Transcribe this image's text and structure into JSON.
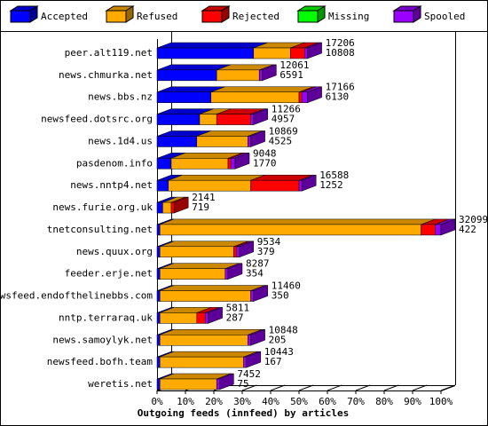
{
  "chart_data": {
    "type": "bar",
    "orientation": "horizontal",
    "stacked": true,
    "x_label": "Outgoing feeds (innfeed) by articles",
    "categories": [
      "peer.alt119.net",
      "news.chmurka.net",
      "news.bbs.nz",
      "newsfeed.dotsrc.org",
      "news.1d4.us",
      "pasdenom.info",
      "news.nntp4.net",
      "news.furie.org.uk",
      "tnetconsulting.net",
      "news.quux.org",
      "feeder.erje.net",
      "newsfeed.endofthelinebbs.com",
      "nntp.terraraq.uk",
      "news.samoylyk.net",
      "newsfeed.bofh.team",
      "weretis.net"
    ],
    "series": [
      {
        "name": "Accepted",
        "color": "#0000ff",
        "values": [
          34,
          21,
          19,
          15,
          14,
          5,
          4,
          2,
          1,
          1,
          1,
          1,
          1,
          1,
          1,
          1
        ]
      },
      {
        "name": "Refused",
        "color": "#ffaa00",
        "values": [
          13,
          15,
          31,
          6,
          18,
          20,
          29,
          3,
          92,
          26,
          23,
          32,
          13,
          31,
          29.5,
          20
        ]
      },
      {
        "name": "Rejected",
        "color": "#ff0000",
        "values": [
          5,
          0,
          1,
          12,
          0,
          1,
          17,
          1,
          5,
          1,
          0,
          0,
          3,
          0,
          0,
          0
        ]
      },
      {
        "name": "Missing",
        "color": "#00ff00",
        "values": [
          0,
          0,
          0,
          0,
          0,
          0,
          0,
          0,
          0,
          0,
          0,
          0,
          0,
          0,
          0,
          0
        ]
      },
      {
        "name": "Spooled",
        "color": "#9900ff",
        "values": [
          1,
          1,
          2,
          1,
          1,
          1.5,
          1,
          0,
          2,
          1,
          1,
          1,
          1,
          1,
          1,
          1
        ]
      }
    ],
    "offered_labels": [
      17206,
      12061,
      17166,
      11266,
      10869,
      9048,
      16588,
      2141,
      32099,
      9534,
      8287,
      11460,
      5811,
      10848,
      10443,
      7452
    ],
    "accepted_labels": [
      10808,
      6591,
      6130,
      4957,
      4525,
      1770,
      1252,
      719,
      422,
      379,
      354,
      350,
      287,
      205,
      167,
      75
    ],
    "xlim": [
      0,
      100
    ],
    "xticks": [
      {
        "value": 0,
        "label": "0%"
      },
      {
        "value": 10,
        "label": "10%"
      },
      {
        "value": 20,
        "label": "20%"
      },
      {
        "value": 30,
        "label": "30%"
      },
      {
        "value": 40,
        "label": "40%"
      },
      {
        "value": 50,
        "label": "50%"
      },
      {
        "value": 60,
        "label": "60%"
      },
      {
        "value": 70,
        "label": "70%"
      },
      {
        "value": 80,
        "label": "80%"
      },
      {
        "value": 90,
        "label": "90%"
      },
      {
        "value": 100,
        "label": "100%"
      }
    ]
  }
}
